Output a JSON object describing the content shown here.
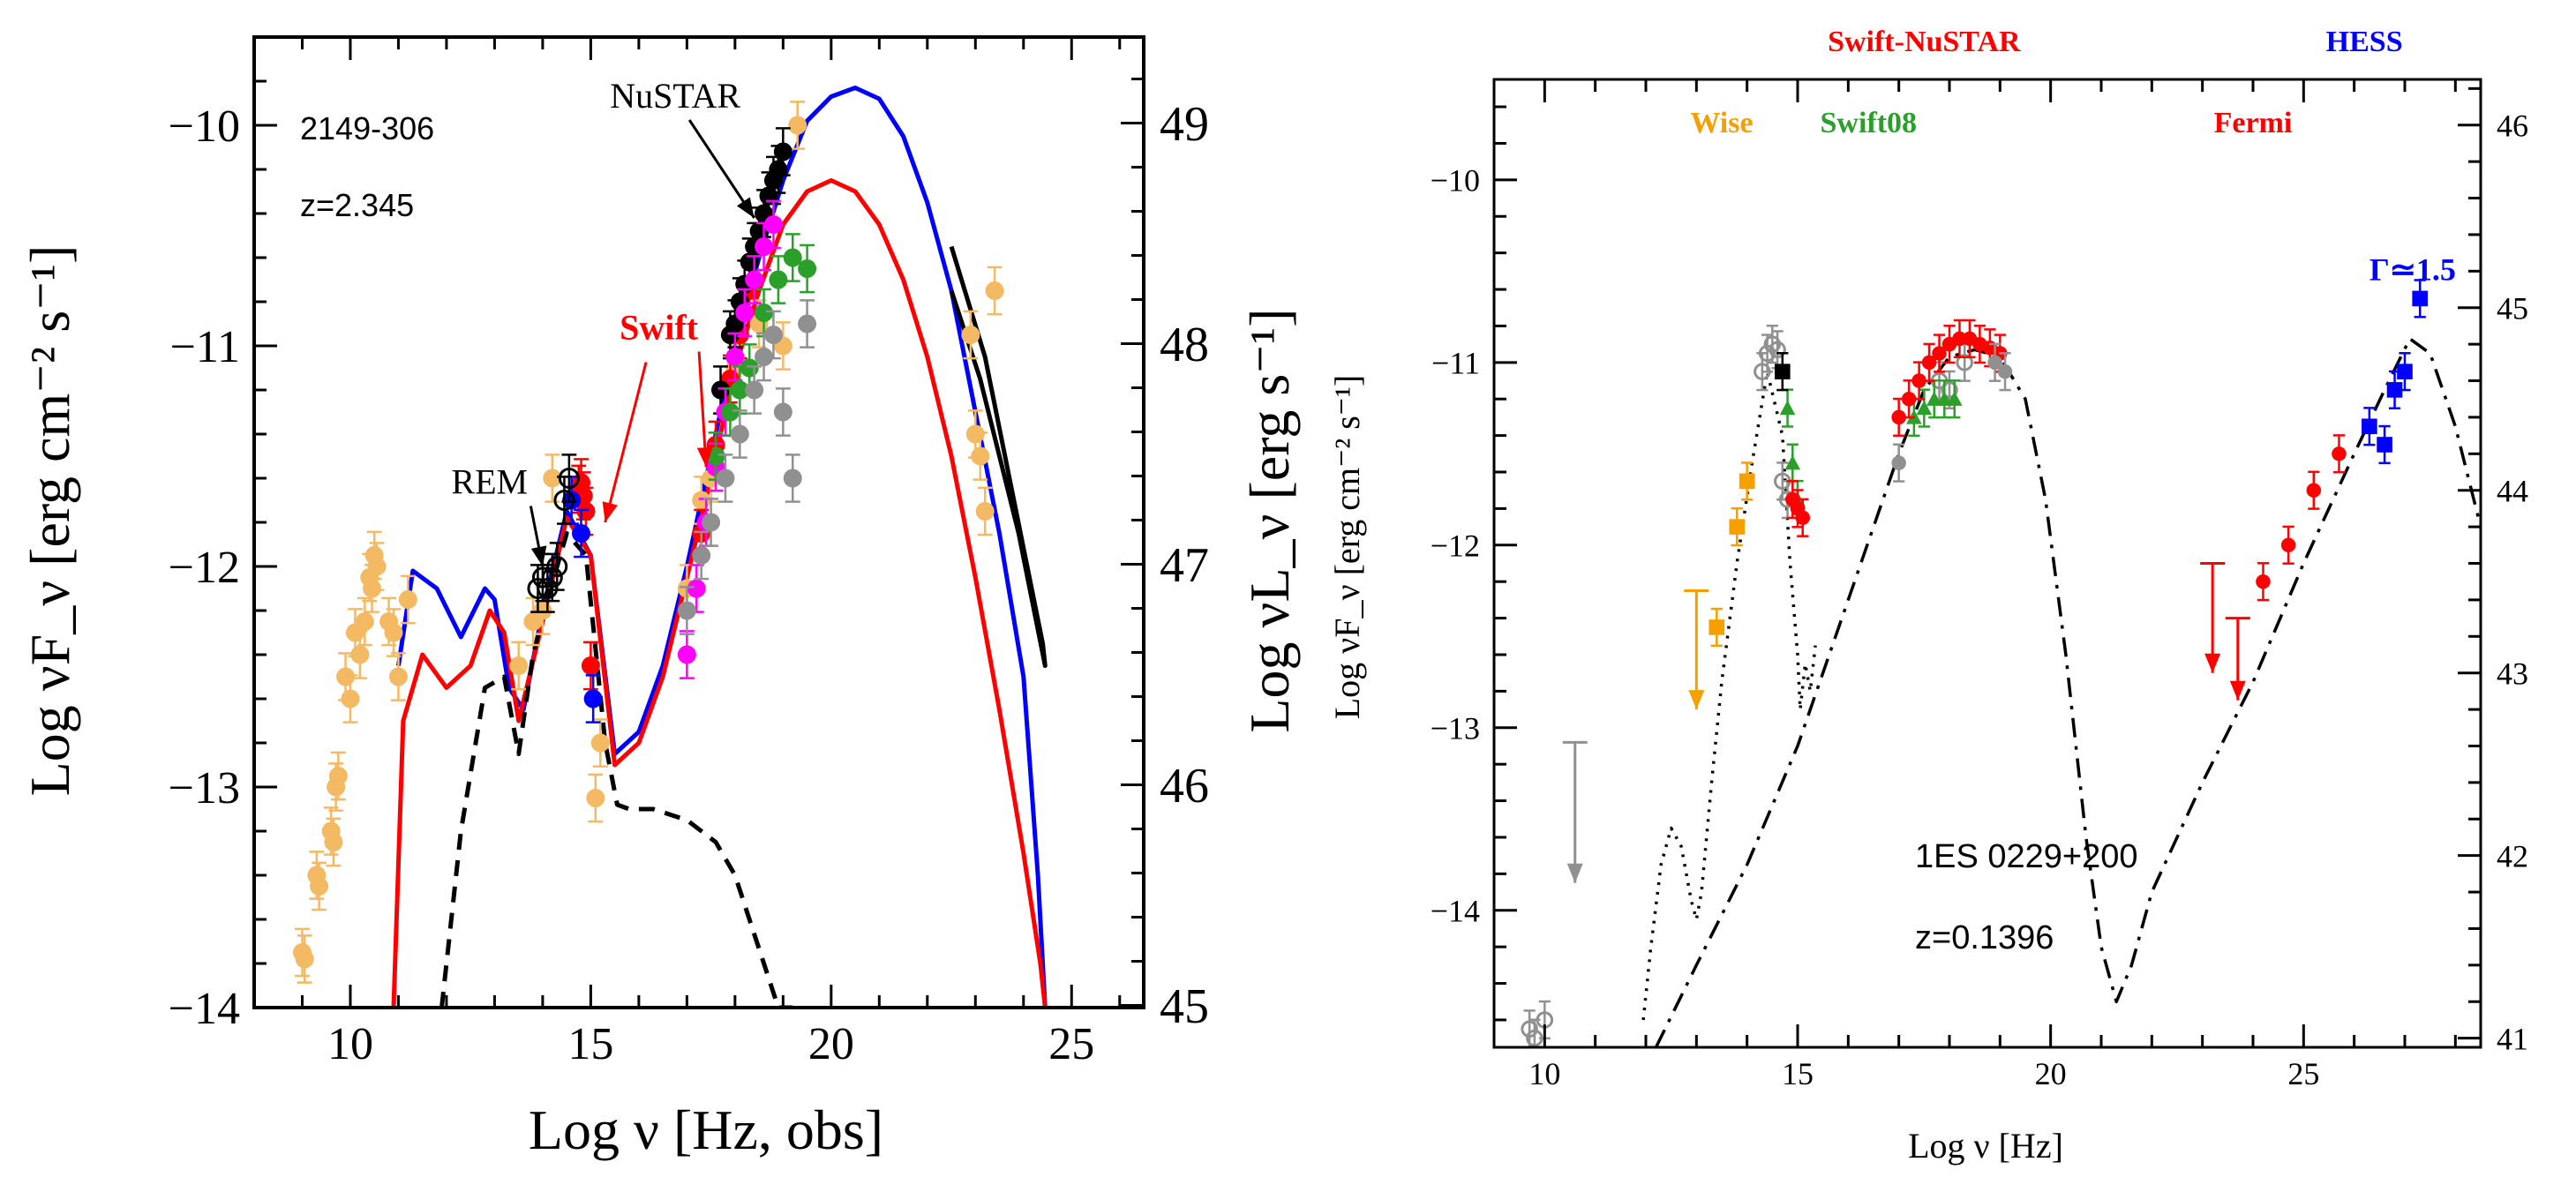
{
  "colors": {
    "orange": "#f4b963",
    "wise": "#f5a000",
    "red": "#ff0000",
    "blue": "#0000ff",
    "green": "#2aa02a",
    "magenta": "#ff00ff",
    "grey": "#909090",
    "black": "#000000"
  },
  "chart_data": [
    {
      "type": "scatter",
      "title": "",
      "source_name": "2149-306",
      "redshift": "z=2.345",
      "xlabel": "Log ν [Hz, obs]",
      "ylabel": "Log νF_ν [erg cm⁻² s⁻¹]",
      "ylabel_right": "Log νL_ν [erg s⁻¹]",
      "xlim": [
        8,
        26.5
      ],
      "ylim": [
        -14,
        -9.6
      ],
      "xticks": [
        10,
        15,
        20,
        25
      ],
      "yticks": [
        -14,
        -13,
        -12,
        -11,
        -10
      ],
      "yticks_right": [
        45,
        46,
        47,
        48,
        49
      ],
      "right_axis_offset": 58.99,
      "annotations": [
        {
          "text": "NuSTAR",
          "x": 15.4,
          "y": -9.92,
          "arrow_to": [
            18.4,
            -10.42
          ]
        },
        {
          "text": "Swift",
          "x": 15.6,
          "y": -10.97,
          "color": "red",
          "arrow_to": [
            17.4,
            -11.55
          ],
          "arrow2_to": [
            15.3,
            -11.8
          ]
        },
        {
          "text": "REM",
          "x": 12.1,
          "y": -11.67,
          "arrow_to": [
            14.0,
            -12.0
          ]
        }
      ],
      "series": [
        {
          "name": "blue model",
          "kind": "line",
          "color": "blue",
          "x": [
            11.0,
            11.3,
            11.8,
            12.3,
            12.8,
            13.0,
            13.3,
            13.6,
            14.0,
            14.5,
            15.0,
            15.5,
            16.0,
            16.5,
            17.0,
            17.5,
            18.0,
            18.5,
            19.0,
            19.5,
            20.0,
            20.5,
            21.0,
            21.5,
            22.0,
            22.5,
            23.0,
            23.5,
            24.0,
            24.3,
            24.45
          ],
          "y": [
            -12.45,
            -12.02,
            -12.1,
            -12.32,
            -12.1,
            -12.15,
            -12.55,
            -12.65,
            -12.2,
            -11.75,
            -11.95,
            -12.85,
            -12.75,
            -12.45,
            -12.0,
            -11.5,
            -11.0,
            -10.6,
            -10.25,
            -9.98,
            -9.87,
            -9.83,
            -9.88,
            -10.05,
            -10.35,
            -10.75,
            -11.3,
            -11.85,
            -12.5,
            -13.4,
            -14.0
          ]
        },
        {
          "name": "red model",
          "kind": "line",
          "color": "red",
          "x": [
            10.9,
            11.1,
            11.5,
            12.0,
            12.5,
            12.9,
            13.2,
            13.5,
            14.0,
            14.5,
            15.0,
            15.5,
            16.0,
            16.5,
            17.0,
            17.5,
            18.0,
            18.5,
            19.0,
            19.5,
            20.0,
            20.5,
            21.0,
            21.5,
            22.0,
            22.5,
            23.0,
            23.5,
            24.0,
            24.35,
            24.45
          ],
          "y": [
            -14.0,
            -12.7,
            -12.4,
            -12.55,
            -12.45,
            -12.2,
            -12.3,
            -12.7,
            -12.25,
            -11.78,
            -11.95,
            -12.9,
            -12.8,
            -12.5,
            -12.05,
            -11.6,
            -11.1,
            -10.75,
            -10.45,
            -10.3,
            -10.25,
            -10.3,
            -10.45,
            -10.7,
            -11.05,
            -11.5,
            -12.05,
            -12.65,
            -13.3,
            -13.8,
            -14.0
          ]
        },
        {
          "name": "black dashed component",
          "kind": "line",
          "color": "black",
          "dashed": true,
          "x": [
            11.9,
            12.3,
            12.8,
            13.2,
            13.5,
            13.8,
            14.1,
            14.5,
            14.9,
            15.3,
            15.55,
            15.8,
            16.3,
            17.0,
            17.6,
            18.0,
            18.3,
            18.6,
            18.9,
            19.2
          ],
          "y": [
            -14.0,
            -13.2,
            -12.55,
            -12.5,
            -12.85,
            -12.4,
            -12.15,
            -11.85,
            -11.95,
            -12.8,
            -13.08,
            -13.1,
            -13.1,
            -13.15,
            -13.25,
            -13.4,
            -13.6,
            -13.8,
            -14.0,
            -14.0
          ]
        },
        {
          "name": "gamma-ray bowtie",
          "kind": "line",
          "color": "black",
          "x": [
            22.5,
            23.2,
            23.8,
            24.4,
            24.45,
            23.9,
            23.1,
            22.5
          ],
          "y": [
            -10.55,
            -11.05,
            -11.7,
            -12.35,
            -12.45,
            -11.85,
            -11.15,
            -10.75
          ]
        },
        {
          "name": "archival orange",
          "kind": "points",
          "color": "orange",
          "x": [
            9.0,
            9.05,
            9.3,
            9.35,
            9.6,
            9.65,
            9.7,
            9.75,
            9.9,
            10.0,
            10.1,
            10.2,
            10.3,
            10.4,
            10.45,
            10.5,
            10.55,
            10.8,
            10.9,
            11.0,
            11.2,
            13.5,
            13.8,
            14.0,
            14.2,
            15.1,
            15.2,
            17.0,
            17.3,
            17.5,
            18.0,
            18.5,
            19.0,
            19.3,
            22.9,
            23.0,
            23.1,
            23.2,
            23.4
          ],
          "y": [
            -13.75,
            -13.78,
            -13.4,
            -13.45,
            -13.2,
            -13.25,
            -13.0,
            -12.95,
            -12.5,
            -12.6,
            -12.3,
            -12.4,
            -12.25,
            -12.05,
            -12.1,
            -11.95,
            -12.0,
            -12.25,
            -12.3,
            -12.5,
            -12.15,
            -12.45,
            -12.25,
            -12.2,
            -11.6,
            -13.05,
            -12.8,
            -12.1,
            -11.7,
            -11.6,
            -11.1,
            -10.9,
            -11.0,
            -10.0,
            -10.95,
            -11.4,
            -11.5,
            -11.75,
            -10.75
          ]
        },
        {
          "name": "Swift (red)",
          "kind": "points",
          "color": "red",
          "x": [
            14.75,
            14.8,
            14.85,
            14.9,
            15.0,
            17.3,
            17.6,
            17.9,
            18.1,
            18.3
          ],
          "y": [
            -11.65,
            -11.62,
            -11.68,
            -11.75,
            -12.45,
            -11.85,
            -11.45,
            -11.15,
            -10.95,
            -10.75
          ]
        },
        {
          "name": "Swift (blue)",
          "kind": "points",
          "color": "blue",
          "x": [
            14.6,
            14.8,
            15.05
          ],
          "y": [
            -11.7,
            -11.85,
            -12.6
          ]
        },
        {
          "name": "REM (black open)",
          "kind": "points",
          "color": "black",
          "open": true,
          "x": [
            13.9,
            14.0,
            14.1,
            14.2,
            14.3,
            14.45,
            14.55
          ],
          "y": [
            -12.1,
            -12.05,
            -12.1,
            -12.05,
            -12.0,
            -11.7,
            -11.6
          ]
        },
        {
          "name": "NuSTAR (black)",
          "kind": "points",
          "color": "black",
          "x": [
            17.7,
            17.9,
            18.0,
            18.1,
            18.2,
            18.3,
            18.4,
            18.5,
            18.6,
            18.7,
            18.8,
            18.9,
            19.0
          ],
          "y": [
            -11.2,
            -10.95,
            -10.9,
            -10.8,
            -10.72,
            -10.62,
            -10.55,
            -10.48,
            -10.4,
            -10.32,
            -10.25,
            -10.2,
            -10.12
          ]
        },
        {
          "name": "magenta",
          "kind": "points",
          "color": "magenta",
          "x": [
            17.0,
            17.2,
            17.4,
            17.6,
            17.8,
            18.0,
            18.2,
            18.4,
            18.6,
            18.8
          ],
          "y": [
            -12.4,
            -12.1,
            -11.8,
            -11.55,
            -11.3,
            -11.05,
            -10.85,
            -10.7,
            -10.55,
            -10.45
          ]
        },
        {
          "name": "green",
          "kind": "points",
          "color": "green",
          "x": [
            17.6,
            17.9,
            18.1,
            18.3,
            18.6,
            18.9,
            19.2,
            19.5
          ],
          "y": [
            -11.5,
            -11.3,
            -11.2,
            -11.1,
            -10.85,
            -10.7,
            -10.6,
            -10.65
          ]
        },
        {
          "name": "grey",
          "kind": "points",
          "color": "grey",
          "x": [
            17.0,
            17.3,
            17.5,
            17.8,
            18.1,
            18.4,
            18.6,
            18.8,
            19.0,
            19.2,
            19.5
          ],
          "y": [
            -12.2,
            -11.95,
            -11.8,
            -11.6,
            -11.4,
            -11.2,
            -11.05,
            -10.95,
            -11.3,
            -11.6,
            -10.9
          ]
        }
      ]
    },
    {
      "type": "scatter",
      "title": "",
      "source_name": "1ES 0229+200",
      "redshift": "z=0.1396",
      "xlabel": "Log ν [Hz]",
      "ylabel": "Log νF_ν [erg cm⁻² s⁻¹]",
      "xlim": [
        9,
        28.5
      ],
      "ylim": [
        -14.75,
        -9.45
      ],
      "xticks": [
        10,
        15,
        20,
        25
      ],
      "yticks": [
        -14,
        -13,
        -12,
        -11,
        -10
      ],
      "yticks_right": [
        41,
        42,
        43,
        44,
        45,
        46
      ],
      "right_axis_offset": 55.7,
      "band_labels": [
        {
          "text": "Wise",
          "x": 13.5,
          "color": "wise",
          "row": "inside"
        },
        {
          "text": "Swift08",
          "x": 16.4,
          "color": "green",
          "row": "inside"
        },
        {
          "text": "Fermi",
          "x": 24.0,
          "color": "red",
          "row": "inside"
        },
        {
          "text": "Swift-NuSTAR",
          "x": 17.5,
          "color": "red",
          "row": "above"
        },
        {
          "text": "HESS",
          "x": 26.2,
          "color": "blue",
          "row": "above"
        }
      ],
      "annotations": [
        {
          "text": "Γ≃1.5",
          "x": 26.3,
          "y": -10.55,
          "color": "blue"
        }
      ],
      "series": [
        {
          "name": "dotted model",
          "kind": "line",
          "color": "black",
          "dotted": true,
          "x": [
            11.95,
            12.1,
            12.3,
            12.5,
            12.7,
            12.9,
            13.0,
            13.1,
            13.3,
            13.5,
            13.8,
            14.1,
            14.4,
            14.7,
            14.85,
            15.0,
            15.05,
            15.15,
            15.25,
            15.35
          ],
          "y": [
            -14.6,
            -14.2,
            -13.75,
            -13.55,
            -13.65,
            -13.95,
            -14.05,
            -13.9,
            -13.3,
            -12.75,
            -12.1,
            -11.55,
            -11.05,
            -11.4,
            -12.1,
            -12.6,
            -12.9,
            -12.65,
            -12.8,
            -12.55
          ]
        },
        {
          "name": "dash-dot model",
          "kind": "line",
          "color": "black",
          "dashdot": true,
          "x": [
            12.2,
            13.0,
            14.0,
            15.0,
            16.0,
            17.0,
            17.5,
            18.0,
            18.5,
            19.0,
            19.5,
            19.9,
            20.3,
            20.7,
            21.0,
            21.3,
            21.6,
            22.0,
            23.0,
            24.0,
            25.0,
            26.0,
            26.6,
            27.1,
            27.5,
            28.0,
            28.5
          ],
          "y": [
            -14.75,
            -14.3,
            -13.75,
            -13.1,
            -12.3,
            -11.5,
            -11.15,
            -10.97,
            -10.93,
            -10.97,
            -11.2,
            -11.75,
            -12.6,
            -13.6,
            -14.2,
            -14.5,
            -14.3,
            -13.9,
            -13.3,
            -12.75,
            -12.1,
            -11.5,
            -11.15,
            -10.87,
            -10.95,
            -11.35,
            -11.9
          ]
        },
        {
          "name": "Wise",
          "kind": "points",
          "color": "wise",
          "marker": "square",
          "x": [
            13.4,
            13.8,
            14.0
          ],
          "y": [
            -12.45,
            -11.9,
            -11.65
          ]
        },
        {
          "name": "Wise upper limit",
          "kind": "upper_limit",
          "color": "wise",
          "x": [
            13.0
          ],
          "y": [
            -12.25
          ],
          "y_to": [
            -12.9
          ]
        },
        {
          "name": "grey radio upper limit",
          "kind": "upper_limit",
          "color": "grey",
          "x": [
            10.6
          ],
          "y": [
            -13.08
          ],
          "y_to": [
            -13.85
          ]
        },
        {
          "name": "grey open",
          "kind": "points",
          "color": "grey",
          "open": true,
          "x": [
            9.7,
            9.8,
            10.0,
            14.3,
            14.4,
            14.5,
            14.6,
            14.7,
            14.8,
            17.8,
            18.0,
            18.3
          ],
          "y": [
            -14.65,
            -14.7,
            -14.6,
            -11.05,
            -10.95,
            -10.9,
            -10.93,
            -11.65,
            -11.75,
            -11.1,
            -11.15,
            -11.0
          ]
        },
        {
          "name": "Swift08 (green)",
          "kind": "points",
          "color": "green",
          "marker": "triangle",
          "x": [
            14.8,
            14.9,
            15.0,
            17.3,
            17.5,
            17.7,
            17.9,
            18.1
          ],
          "y": [
            -11.25,
            -11.55,
            -11.75,
            -11.3,
            -11.25,
            -11.2,
            -11.2,
            -11.2
          ]
        },
        {
          "name": "black square",
          "kind": "points",
          "color": "black",
          "marker": "square",
          "x": [
            14.7
          ],
          "y": [
            -11.05
          ]
        },
        {
          "name": "Swift-NuSTAR (red)",
          "kind": "points",
          "color": "red",
          "x": [
            14.9,
            15.0,
            15.1,
            17.0,
            17.2,
            17.4,
            17.6,
            17.8,
            18.0,
            18.2,
            18.4,
            18.6,
            18.8,
            19.0
          ],
          "y": [
            -11.75,
            -11.8,
            -11.85,
            -11.3,
            -11.2,
            -11.1,
            -11.0,
            -10.95,
            -10.9,
            -10.87,
            -10.87,
            -10.9,
            -10.92,
            -10.95
          ]
        },
        {
          "name": "grey X-ray",
          "kind": "points",
          "color": "grey",
          "x": [
            17.0,
            18.9,
            19.1
          ],
          "y": [
            -11.55,
            -11.0,
            -11.05
          ]
        },
        {
          "name": "Fermi",
          "kind": "points",
          "color": "red",
          "x": [
            24.2,
            24.7,
            25.2,
            25.7
          ],
          "y": [
            -12.2,
            -12.0,
            -11.7,
            -11.5
          ]
        },
        {
          "name": "Fermi upper limits",
          "kind": "upper_limit",
          "color": "red",
          "x": [
            23.2,
            23.7
          ],
          "y": [
            -12.1,
            -12.4
          ],
          "y_to": [
            -12.7,
            -12.85
          ]
        },
        {
          "name": "HESS",
          "kind": "points",
          "color": "blue",
          "marker": "square",
          "x": [
            26.3,
            26.6,
            26.8,
            27.0,
            27.3
          ],
          "y": [
            -11.35,
            -11.45,
            -11.15,
            -11.05,
            -10.65
          ]
        }
      ]
    }
  ]
}
